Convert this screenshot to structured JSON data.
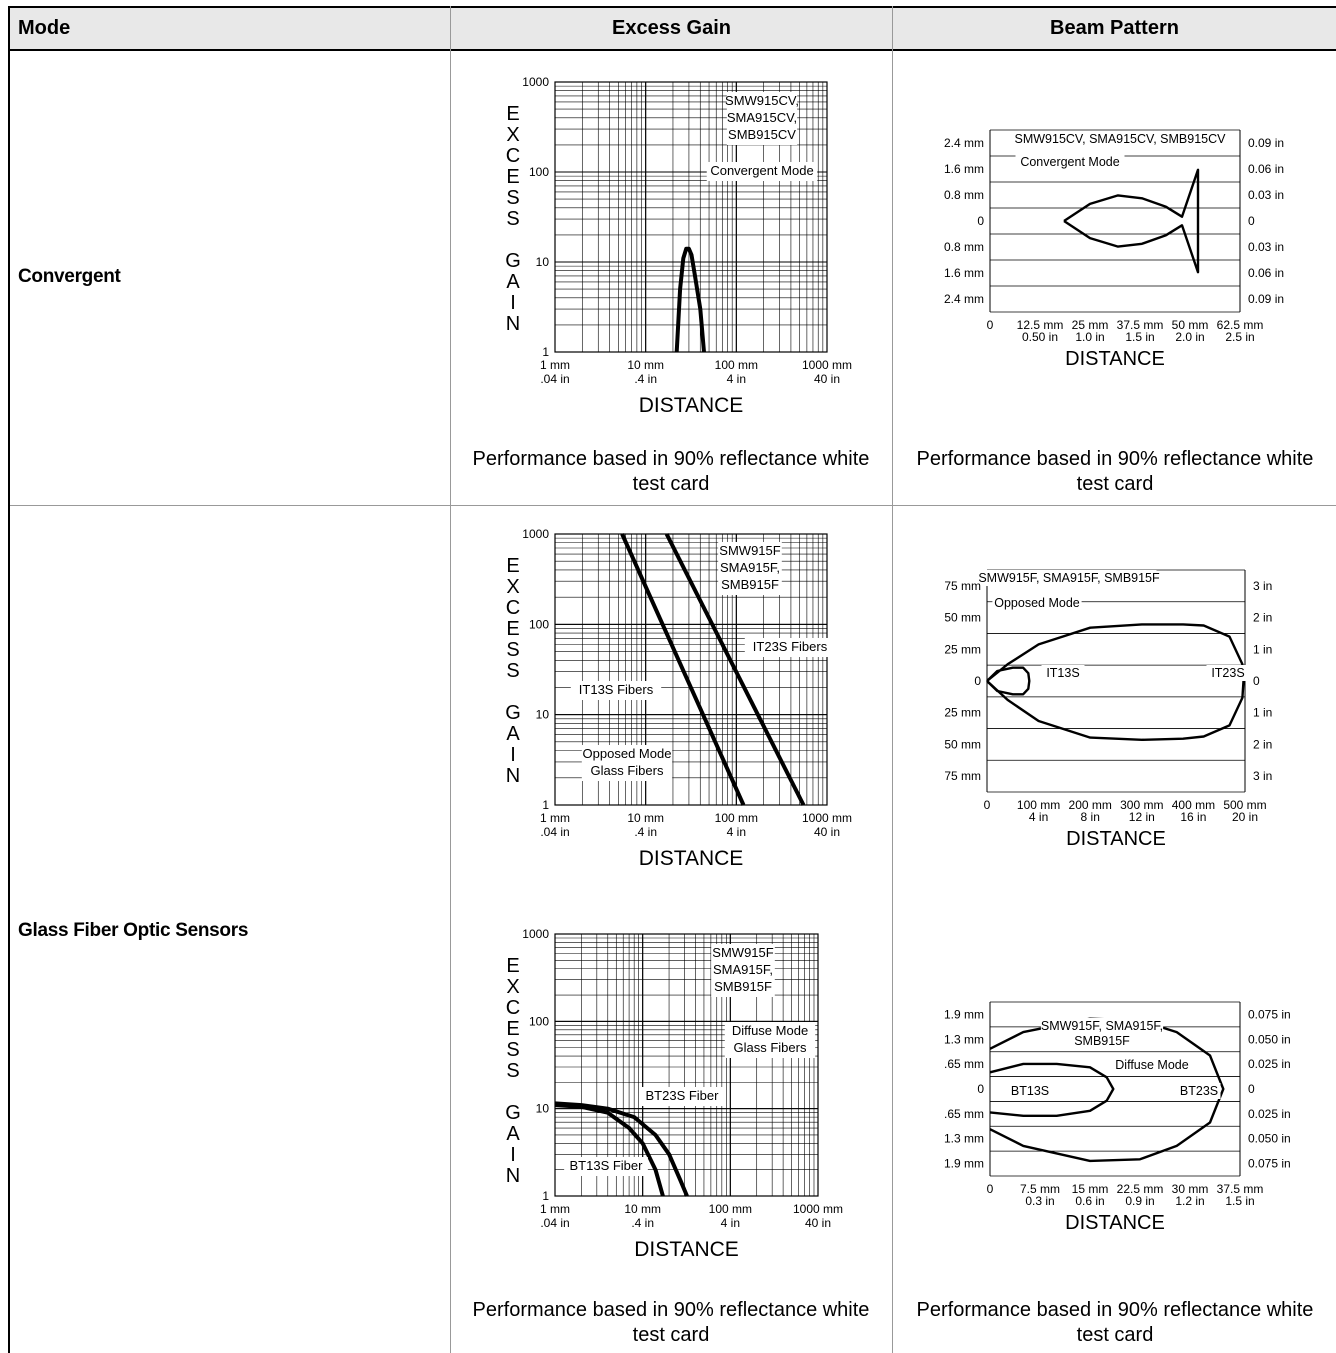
{
  "table": {
    "headers": [
      "Mode",
      "Excess Gain",
      "Beam Pattern"
    ],
    "rows": [
      {
        "mode": "Convergent",
        "eg_caption": "Performance based in 90% reflectance white test card",
        "bp_caption": "Performance based in 90% reflectance white test card"
      },
      {
        "mode": "Glass Fiber Optic Sensors",
        "eg_caption": "Performance based in 90% reflectance white test card",
        "bp_caption": "Performance based in 90% reflectance white test card"
      }
    ]
  },
  "chart_data": [
    {
      "type": "line",
      "chart": "excess-gain",
      "title_lines": [
        "SMW915CV,",
        "SMA915CV,",
        "SMB915CV"
      ],
      "annotation": [
        "Convergent Mode"
      ],
      "ylabel": [
        "E",
        "X",
        "C",
        "E",
        "S",
        "S",
        "",
        "G",
        "A",
        "I",
        "N"
      ],
      "xlabel": "DISTANCE",
      "xscale": "log",
      "yscale": "log",
      "xlim_mm": [
        1,
        1000
      ],
      "ylim": [
        1,
        1000
      ],
      "y_ticks": [
        "1000",
        "100",
        "10",
        "1"
      ],
      "x_ticks": [
        [
          "1 mm",
          ".04 in"
        ],
        [
          "10 mm",
          ".4 in"
        ],
        [
          "100 mm",
          "4 in"
        ],
        [
          "1000 mm",
          "40 in"
        ]
      ],
      "series": [
        {
          "points_mm": [
            [
              22,
              1
            ],
            [
              24,
              5
            ],
            [
              26,
              11
            ],
            [
              28,
              14
            ],
            [
              30,
              14
            ],
            [
              32,
              12
            ],
            [
              35,
              7
            ],
            [
              40,
              3
            ],
            [
              44,
              1
            ]
          ]
        }
      ],
      "labels": []
    },
    {
      "type": "line",
      "chart": "beam-pattern",
      "title_lines": [
        "SMW915CV, SMA915CV, SMB915CV"
      ],
      "annotation": [
        "Convergent Mode"
      ],
      "xlabel": "DISTANCE",
      "left_ticks": [
        "2.4 mm",
        "1.6 mm",
        "0.8 mm",
        "0",
        "0.8 mm",
        "1.6 mm",
        "2.4 mm"
      ],
      "right_ticks": [
        "0.09 in",
        "0.06 in",
        "0.03 in",
        "0",
        "0.03 in",
        "0.06 in",
        "0.09 in"
      ],
      "y_max": 3.2,
      "x_ticks": [
        [
          "0",
          ""
        ],
        [
          "12.5 mm",
          "0.50 in"
        ],
        [
          "25 mm",
          "1.0 in"
        ],
        [
          "37.5 mm",
          "1.5 in"
        ],
        [
          "50 mm",
          "2.0 in"
        ],
        [
          "62.5 mm",
          "2.5 in"
        ]
      ],
      "x_max": 62.5,
      "series": [
        {
          "shape": "fish",
          "points_mm": [
            [
              18.5,
              0
            ],
            [
              25,
              0.6
            ],
            [
              32,
              0.9
            ],
            [
              38,
              0.8
            ],
            [
              44,
              0.5
            ],
            [
              48,
              0.15
            ],
            [
              52,
              1.8
            ],
            [
              52,
              -1.8
            ],
            [
              48,
              -0.15
            ],
            [
              44,
              -0.5
            ],
            [
              38,
              -0.8
            ],
            [
              32,
              -0.9
            ],
            [
              25,
              -0.6
            ],
            [
              18.5,
              0
            ]
          ]
        }
      ],
      "labels": []
    },
    {
      "type": "line",
      "chart": "excess-gain",
      "title_lines": [
        "SMW915F",
        "SMA915F,",
        "SMB915F"
      ],
      "annotation": [
        "Opposed Mode",
        "Glass Fibers"
      ],
      "ylabel": [
        "E",
        "X",
        "C",
        "E",
        "S",
        "S",
        "",
        "G",
        "A",
        "I",
        "N"
      ],
      "xlabel": "DISTANCE",
      "xscale": "log",
      "yscale": "log",
      "xlim_mm": [
        1,
        1000
      ],
      "ylim": [
        1,
        1000
      ],
      "y_ticks": [
        "1000",
        "100",
        "10",
        "1"
      ],
      "x_ticks": [
        [
          "1 mm",
          ".04 in"
        ],
        [
          "10 mm",
          ".4 in"
        ],
        [
          "100 mm",
          "4 in"
        ],
        [
          "1000 mm",
          "40 in"
        ]
      ],
      "series": [
        {
          "name": "IT13S Fibers",
          "points_mm": [
            [
              5.5,
              1000
            ],
            [
              120,
              1
            ]
          ]
        },
        {
          "name": "IT23S Fibers",
          "points_mm": [
            [
              17,
              1000
            ],
            [
              550,
              1
            ]
          ]
        }
      ],
      "labels": [
        "IT23S Fibers",
        "IT13S Fibers"
      ]
    },
    {
      "type": "line",
      "chart": "beam-pattern",
      "title_lines": [
        "SMW915F, SMA915F, SMB915F"
      ],
      "annotation": [
        "Opposed Mode"
      ],
      "xlabel": "DISTANCE",
      "left_ticks": [
        "75 mm",
        "50 mm",
        "25 mm",
        "0",
        "25 mm",
        "50 mm",
        "75 mm"
      ],
      "right_ticks": [
        "3 in",
        "2 in",
        "1 in",
        "0",
        "1 in",
        "2 in",
        "3 in"
      ],
      "y_max": 100,
      "x_ticks": [
        [
          "0",
          ""
        ],
        [
          "100 mm",
          "4 in"
        ],
        [
          "200 mm",
          "8 in"
        ],
        [
          "300 mm",
          "12 in"
        ],
        [
          "400 mm",
          "16 in"
        ],
        [
          "500 mm",
          "20 in"
        ]
      ],
      "x_max": 500,
      "series": [
        {
          "name": "IT13S",
          "points_mm": [
            [
              0,
              0
            ],
            [
              20,
              9
            ],
            [
              50,
              12
            ],
            [
              70,
              12
            ],
            [
              80,
              7
            ],
            [
              82,
              0
            ],
            [
              80,
              -7
            ],
            [
              70,
              -12
            ],
            [
              50,
              -12
            ],
            [
              20,
              -9
            ],
            [
              0,
              0
            ]
          ]
        },
        {
          "name": "IT23S",
          "points_mm": [
            [
              0,
              0
            ],
            [
              40,
              15
            ],
            [
              100,
              33
            ],
            [
              200,
              48
            ],
            [
              300,
              51
            ],
            [
              380,
              51
            ],
            [
              420,
              50
            ],
            [
              470,
              40
            ],
            [
              495,
              15
            ],
            [
              497,
              0
            ],
            [
              495,
              -15
            ],
            [
              470,
              -40
            ],
            [
              420,
              -50
            ],
            [
              380,
              -52
            ],
            [
              300,
              -53
            ],
            [
              200,
              -51
            ],
            [
              100,
              -36
            ],
            [
              40,
              -17
            ],
            [
              0,
              0
            ]
          ]
        }
      ],
      "labels": [
        "IT13S",
        "IT23S"
      ]
    },
    {
      "type": "line",
      "chart": "excess-gain",
      "title_lines": [
        "SMW915F",
        "SMA915F,",
        "SMB915F"
      ],
      "annotation": [
        "Diffuse Mode",
        "Glass Fibers"
      ],
      "ylabel": [
        "E",
        "X",
        "C",
        "E",
        "S",
        "S",
        "",
        "G",
        "A",
        "I",
        "N"
      ],
      "xlabel": "DISTANCE",
      "xscale": "log",
      "yscale": "log",
      "xlim_mm": [
        1,
        1000
      ],
      "ylim": [
        1,
        1000
      ],
      "y_ticks": [
        "1000",
        "100",
        "10",
        "1"
      ],
      "x_ticks": [
        [
          "1 mm",
          ".04 in"
        ],
        [
          "10 mm",
          ".4 in"
        ],
        [
          "100 mm",
          "4 in"
        ],
        [
          "1000 mm",
          "40 in"
        ]
      ],
      "series": [
        {
          "name": "BT13S Fiber",
          "points_mm": [
            [
              1,
              11
            ],
            [
              2,
              10.5
            ],
            [
              4,
              9
            ],
            [
              7,
              6
            ],
            [
              10,
              4
            ],
            [
              14,
              2
            ],
            [
              17,
              1
            ]
          ]
        },
        {
          "name": "BT23S Fiber",
          "points_mm": [
            [
              1,
              11.5
            ],
            [
              2,
              11
            ],
            [
              4,
              10
            ],
            [
              8,
              8
            ],
            [
              14,
              5
            ],
            [
              20,
              3
            ],
            [
              27,
              1.5
            ],
            [
              32,
              1
            ]
          ]
        }
      ],
      "labels": [
        "BT23S Fiber",
        "BT13S Fiber"
      ]
    },
    {
      "type": "line",
      "chart": "beam-pattern",
      "title_lines": [
        "SMW915F, SMA915F,",
        "SMB915F"
      ],
      "annotation": [
        "Diffuse Mode"
      ],
      "xlabel": "DISTANCE",
      "left_ticks": [
        "1.9 mm",
        "1.3 mm",
        ".65 mm",
        "0",
        ".65 mm",
        "1.3 mm",
        "1.9 mm"
      ],
      "right_ticks": [
        "0.075 in",
        "0.050 in",
        "0.025 in",
        "0",
        "0.025 in",
        "0.050 in",
        "0.075 in"
      ],
      "y_max": 2.6,
      "x_ticks": [
        [
          "0",
          ""
        ],
        [
          "7.5 mm",
          "0.3 in"
        ],
        [
          "15 mm",
          "0.6 in"
        ],
        [
          "22.5 mm",
          "0.9 in"
        ],
        [
          "30 mm",
          "1.2 in"
        ],
        [
          "37.5 mm",
          "1.5 in"
        ]
      ],
      "x_max": 37.5,
      "series": [
        {
          "name": "BT13S",
          "points_mm": [
            [
              0,
              0.5
            ],
            [
              5,
              0.75
            ],
            [
              10,
              0.75
            ],
            [
              15,
              0.65
            ],
            [
              17.5,
              0.35
            ],
            [
              18.5,
              0
            ],
            [
              17.5,
              -0.35
            ],
            [
              15,
              -0.65
            ],
            [
              10,
              -0.8
            ],
            [
              5,
              -0.8
            ],
            [
              0,
              -0.7
            ]
          ]
        },
        {
          "name": "BT23S",
          "points_mm": [
            [
              0,
              1.2
            ],
            [
              5,
              1.7
            ],
            [
              15,
              2.1
            ],
            [
              22.5,
              2.05
            ],
            [
              28,
              1.7
            ],
            [
              33,
              1.0
            ],
            [
              35,
              0
            ],
            [
              33,
              -1.0
            ],
            [
              28,
              -1.7
            ],
            [
              22.5,
              -2.1
            ],
            [
              15,
              -2.15
            ],
            [
              5,
              -1.7
            ],
            [
              0,
              -1.2
            ]
          ]
        }
      ],
      "labels": [
        "BT13S",
        "BT23S"
      ]
    }
  ]
}
